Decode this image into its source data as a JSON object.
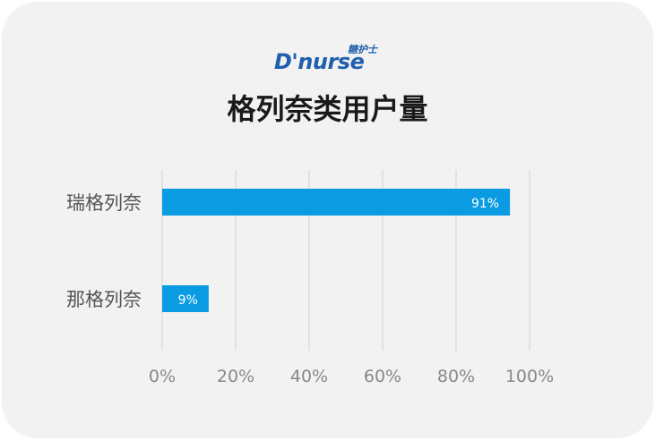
{
  "logo": {
    "main": "D'nurse",
    "sub": "糖护士"
  },
  "chart_data": {
    "type": "bar",
    "orientation": "horizontal",
    "title": "格列奈类用户量",
    "categories": [
      "瑞格列奈",
      "那格列奈"
    ],
    "values": [
      91,
      9
    ],
    "data_labels": [
      "91%",
      "9%"
    ],
    "xlim": [
      0,
      100
    ],
    "x_ticks": [
      "0%",
      "20%",
      "40%",
      "60%",
      "80%",
      "100%"
    ],
    "grid": true,
    "bar_color": "#0a9be3",
    "grid_color": "#dddddd",
    "label_color": "#888888"
  }
}
